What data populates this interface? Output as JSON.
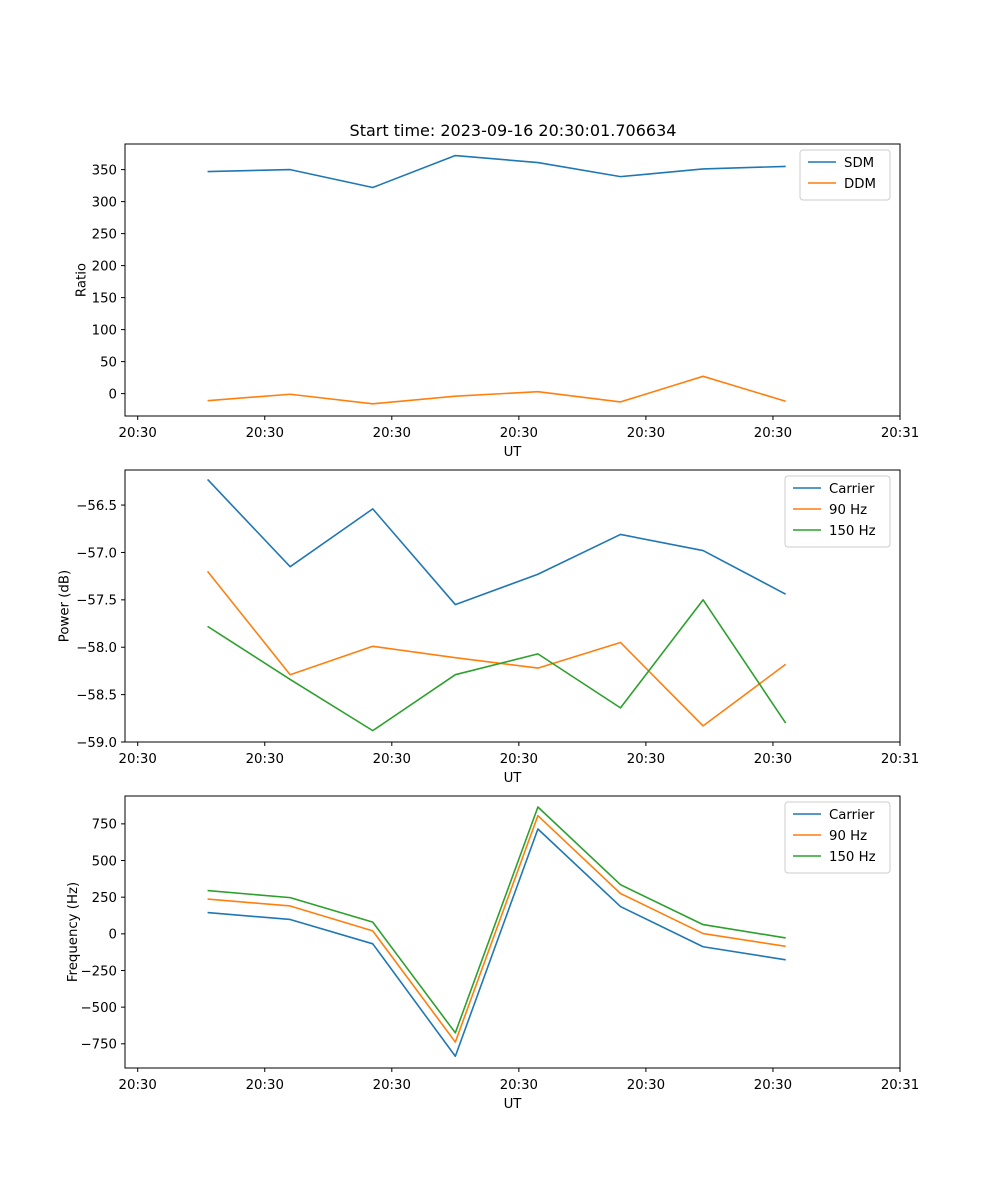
{
  "figure": {
    "title": "Start time: 2023-09-16 20:30:01.706634"
  },
  "chart_data": [
    {
      "type": "line",
      "title": "Start time: 2023-09-16 20:30:01.706634",
      "xlabel": "UT",
      "ylabel": "Ratio",
      "x": [
        0.55,
        1.2,
        1.85,
        2.5,
        3.15,
        3.8,
        4.45,
        5.1
      ],
      "xlim": [
        -0.1,
        6.0
      ],
      "xticks": [
        0,
        1,
        2,
        3,
        4,
        5,
        6
      ],
      "xtick_labels": [
        "20:30",
        "20:30",
        "20:30",
        "20:30",
        "20:30",
        "20:30",
        "20:31"
      ],
      "ylim": [
        -35,
        390
      ],
      "yticks": [
        0,
        50,
        100,
        150,
        200,
        250,
        300,
        350
      ],
      "ytick_labels": [
        "0",
        "50",
        "100",
        "150",
        "200",
        "250",
        "300",
        "350"
      ],
      "legend_position": "top-right",
      "series": [
        {
          "name": "SDM",
          "color": "#1f77b4",
          "values": [
            347,
            350,
            322,
            372,
            361,
            339,
            351,
            355
          ]
        },
        {
          "name": "DDM",
          "color": "#ff7f0e",
          "values": [
            -11,
            -1,
            -16,
            -4,
            3,
            -13,
            27,
            -12
          ]
        }
      ]
    },
    {
      "type": "line",
      "title": "",
      "xlabel": "UT",
      "ylabel": "Power (dB)",
      "x": [
        0.55,
        1.2,
        1.85,
        2.5,
        3.15,
        3.8,
        4.45,
        5.1
      ],
      "xlim": [
        -0.1,
        6.0
      ],
      "xticks": [
        0,
        1,
        2,
        3,
        4,
        5,
        6
      ],
      "xtick_labels": [
        "20:30",
        "20:30",
        "20:30",
        "20:30",
        "20:30",
        "20:30",
        "20:31"
      ],
      "ylim": [
        -59.0,
        -56.13
      ],
      "yticks": [
        -59.0,
        -58.5,
        -58.0,
        -57.5,
        -57.0,
        -56.5
      ],
      "ytick_labels": [
        "−59.0",
        "−58.5",
        "−58.0",
        "−57.5",
        "−57.0",
        "−56.5"
      ],
      "legend_position": "top-right",
      "series": [
        {
          "name": "Carrier",
          "color": "#1f77b4",
          "values": [
            -56.23,
            -57.15,
            -56.54,
            -57.55,
            -57.23,
            -56.81,
            -56.98,
            -57.44
          ]
        },
        {
          "name": "90 Hz",
          "color": "#ff7f0e",
          "values": [
            -57.2,
            -58.29,
            -57.99,
            -58.11,
            -58.22,
            -57.95,
            -58.83,
            -58.18
          ]
        },
        {
          "name": "150 Hz",
          "color": "#2ca02c",
          "values": [
            -57.78,
            -58.34,
            -58.88,
            -58.29,
            -58.07,
            -58.64,
            -57.5,
            -58.8
          ]
        }
      ]
    },
    {
      "type": "line",
      "title": "",
      "xlabel": "UT",
      "ylabel": "Frequency (Hz)",
      "x": [
        0.55,
        1.2,
        1.85,
        2.5,
        3.15,
        3.8,
        4.45,
        5.1
      ],
      "xlim": [
        -0.1,
        6.0
      ],
      "xticks": [
        0,
        1,
        2,
        3,
        4,
        5,
        6
      ],
      "xtick_labels": [
        "20:30",
        "20:30",
        "20:30",
        "20:30",
        "20:30",
        "20:30",
        "20:31"
      ],
      "ylim": [
        -915,
        940
      ],
      "yticks": [
        -750,
        -500,
        -250,
        0,
        250,
        500,
        750
      ],
      "ytick_labels": [
        "−750",
        "−500",
        "−250",
        "0",
        "250",
        "500",
        "750"
      ],
      "legend_position": "top-right",
      "series": [
        {
          "name": "Carrier",
          "color": "#1f77b4",
          "values": [
            145,
            98,
            -68,
            -835,
            715,
            186,
            -88,
            -177
          ]
        },
        {
          "name": "90 Hz",
          "color": "#ff7f0e",
          "values": [
            237,
            190,
            20,
            -738,
            806,
            275,
            2,
            -85
          ]
        },
        {
          "name": "150 Hz",
          "color": "#2ca02c",
          "values": [
            295,
            247,
            80,
            -675,
            865,
            335,
            63,
            -28
          ]
        }
      ]
    }
  ]
}
